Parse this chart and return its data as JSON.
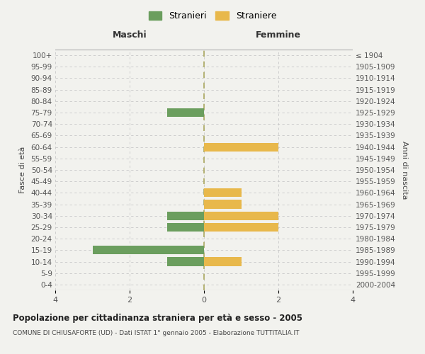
{
  "age_groups": [
    "0-4",
    "5-9",
    "10-14",
    "15-19",
    "20-24",
    "25-29",
    "30-34",
    "35-39",
    "40-44",
    "45-49",
    "50-54",
    "55-59",
    "60-64",
    "65-69",
    "70-74",
    "75-79",
    "80-84",
    "85-89",
    "90-94",
    "95-99",
    "100+"
  ],
  "birth_years": [
    "2000-2004",
    "1995-1999",
    "1990-1994",
    "1985-1989",
    "1980-1984",
    "1975-1979",
    "1970-1974",
    "1965-1969",
    "1960-1964",
    "1955-1959",
    "1950-1954",
    "1945-1949",
    "1940-1944",
    "1935-1939",
    "1930-1934",
    "1925-1929",
    "1920-1924",
    "1915-1919",
    "1910-1914",
    "1905-1909",
    "≤ 1904"
  ],
  "males": [
    0,
    0,
    -1,
    -3,
    0,
    -1,
    -1,
    0,
    0,
    0,
    0,
    0,
    0,
    0,
    0,
    -1,
    0,
    0,
    0,
    0,
    0
  ],
  "females": [
    0,
    0,
    1,
    0,
    0,
    2,
    2,
    1,
    1,
    0,
    0,
    0,
    2,
    0,
    0,
    0,
    0,
    0,
    0,
    0,
    0
  ],
  "male_color": "#6b9e5e",
  "female_color": "#e8b84b",
  "xlim": [
    -4,
    4
  ],
  "xlabel_ticks": [
    -4,
    -2,
    0,
    2,
    4
  ],
  "xlabel_labels": [
    "4",
    "2",
    "0",
    "2",
    "4"
  ],
  "title": "Popolazione per cittadinanza straniera per età e sesso - 2005",
  "subtitle": "COMUNE DI CHIUSAFORTE (UD) - Dati ISTAT 1° gennaio 2005 - Elaborazione TUTTITALIA.IT",
  "ylabel_left": "Fasce di età",
  "ylabel_right": "Anni di nascita",
  "legend_male": "Stranieri",
  "legend_female": "Straniere",
  "maschi_label": "Maschi",
  "femmine_label": "Femmine",
  "bar_height": 0.75,
  "grid_color": "#c8c8c8",
  "bg_color": "#f2f2ee",
  "center_line_color": "#aaa860"
}
